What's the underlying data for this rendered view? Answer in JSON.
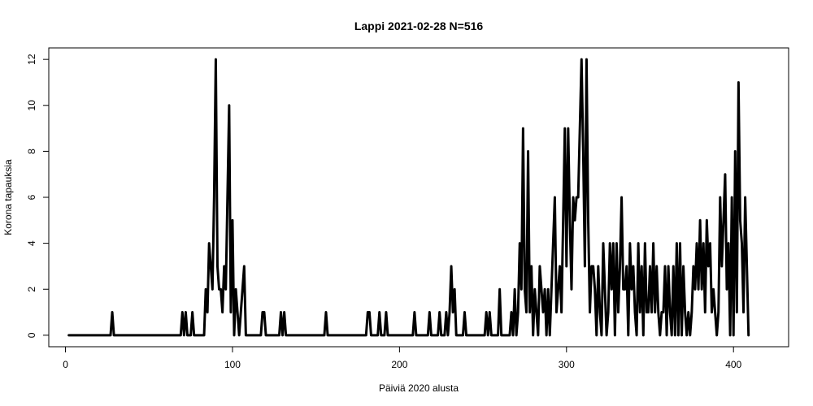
{
  "chart_data": {
    "type": "line",
    "title": "Lappi 2021-02-28 N=516",
    "xlabel": "Päiviä 2020 alusta",
    "ylabel": "Korona tapauksia",
    "xlim": [
      -10,
      433
    ],
    "ylim": [
      -0.5,
      12.5
    ],
    "xticks": [
      0,
      100,
      200,
      300,
      400
    ],
    "yticks": [
      0,
      2,
      4,
      6,
      8,
      10,
      12
    ],
    "grid": false,
    "series": [
      {
        "color": "#000000",
        "points": [
          [
            2,
            0
          ],
          [
            27,
            0
          ],
          [
            28,
            1
          ],
          [
            29,
            0
          ],
          [
            69,
            0
          ],
          [
            70,
            1
          ],
          [
            71,
            0
          ],
          [
            72,
            1
          ],
          [
            73,
            0
          ],
          [
            75,
            0
          ],
          [
            76,
            1
          ],
          [
            77,
            0
          ],
          [
            83,
            0
          ],
          [
            84,
            2
          ],
          [
            85,
            1
          ],
          [
            86,
            4
          ],
          [
            87,
            3
          ],
          [
            88,
            2
          ],
          [
            89,
            6
          ],
          [
            90,
            12
          ],
          [
            91,
            3
          ],
          [
            92,
            2
          ],
          [
            93,
            2
          ],
          [
            94,
            1
          ],
          [
            95,
            3
          ],
          [
            96,
            2
          ],
          [
            97,
            6
          ],
          [
            98,
            10
          ],
          [
            99,
            1
          ],
          [
            100,
            5
          ],
          [
            101,
            0
          ],
          [
            102,
            2
          ],
          [
            103,
            1
          ],
          [
            104,
            0
          ],
          [
            105,
            1
          ],
          [
            106,
            2
          ],
          [
            107,
            3
          ],
          [
            108,
            0
          ],
          [
            117,
            0
          ],
          [
            118,
            1
          ],
          [
            119,
            1
          ],
          [
            120,
            0
          ],
          [
            128,
            0
          ],
          [
            129,
            1
          ],
          [
            130,
            0
          ],
          [
            131,
            1
          ],
          [
            132,
            0
          ],
          [
            155,
            0
          ],
          [
            156,
            1
          ],
          [
            157,
            0
          ],
          [
            180,
            0
          ],
          [
            181,
            1
          ],
          [
            182,
            1
          ],
          [
            183,
            0
          ],
          [
            187,
            0
          ],
          [
            188,
            1
          ],
          [
            189,
            0
          ],
          [
            191,
            0
          ],
          [
            192,
            1
          ],
          [
            193,
            0
          ],
          [
            208,
            0
          ],
          [
            209,
            1
          ],
          [
            210,
            0
          ],
          [
            217,
            0
          ],
          [
            218,
            1
          ],
          [
            219,
            0
          ],
          [
            223,
            0
          ],
          [
            224,
            1
          ],
          [
            225,
            0
          ],
          [
            227,
            0
          ],
          [
            228,
            1
          ],
          [
            229,
            0
          ],
          [
            230,
            1
          ],
          [
            231,
            3
          ],
          [
            232,
            1
          ],
          [
            233,
            2
          ],
          [
            234,
            0
          ],
          [
            238,
            0
          ],
          [
            239,
            1
          ],
          [
            240,
            0
          ],
          [
            251,
            0
          ],
          [
            252,
            1
          ],
          [
            253,
            0
          ],
          [
            254,
            1
          ],
          [
            255,
            0
          ],
          [
            259,
            0
          ],
          [
            260,
            2
          ],
          [
            261,
            0
          ],
          [
            266,
            0
          ],
          [
            267,
            1
          ],
          [
            268,
            0
          ],
          [
            269,
            2
          ],
          [
            270,
            0
          ],
          [
            271,
            1
          ],
          [
            272,
            4
          ],
          [
            273,
            2
          ],
          [
            274,
            9
          ],
          [
            275,
            2
          ],
          [
            276,
            1
          ],
          [
            277,
            8
          ],
          [
            278,
            1
          ],
          [
            279,
            3
          ],
          [
            280,
            0
          ],
          [
            281,
            2
          ],
          [
            282,
            1
          ],
          [
            283,
            0
          ],
          [
            284,
            3
          ],
          [
            285,
            2
          ],
          [
            286,
            1
          ],
          [
            287,
            2
          ],
          [
            288,
            0
          ],
          [
            289,
            2
          ],
          [
            290,
            0
          ],
          [
            291,
            2
          ],
          [
            292,
            4
          ],
          [
            293,
            6
          ],
          [
            294,
            1
          ],
          [
            295,
            2
          ],
          [
            296,
            3
          ],
          [
            297,
            1
          ],
          [
            298,
            5
          ],
          [
            299,
            9
          ],
          [
            300,
            3
          ],
          [
            301,
            9
          ],
          [
            302,
            5
          ],
          [
            303,
            2
          ],
          [
            304,
            6
          ],
          [
            305,
            5
          ],
          [
            306,
            6
          ],
          [
            307,
            6
          ],
          [
            308,
            9
          ],
          [
            309,
            12
          ],
          [
            310,
            8
          ],
          [
            311,
            3
          ],
          [
            312,
            12
          ],
          [
            313,
            5
          ],
          [
            314,
            1
          ],
          [
            315,
            3
          ],
          [
            316,
            3
          ],
          [
            317,
            2
          ],
          [
            318,
            0
          ],
          [
            319,
            3
          ],
          [
            320,
            1
          ],
          [
            321,
            0
          ],
          [
            322,
            4
          ],
          [
            323,
            2
          ],
          [
            324,
            0
          ],
          [
            325,
            1
          ],
          [
            326,
            4
          ],
          [
            327,
            2
          ],
          [
            328,
            4
          ],
          [
            329,
            0
          ],
          [
            330,
            4
          ],
          [
            331,
            1
          ],
          [
            332,
            3
          ],
          [
            333,
            6
          ],
          [
            334,
            2
          ],
          [
            335,
            2
          ],
          [
            336,
            3
          ],
          [
            337,
            0
          ],
          [
            338,
            4
          ],
          [
            339,
            2
          ],
          [
            340,
            3
          ],
          [
            341,
            1
          ],
          [
            342,
            0
          ],
          [
            343,
            4
          ],
          [
            344,
            1
          ],
          [
            345,
            3
          ],
          [
            346,
            0
          ],
          [
            347,
            4
          ],
          [
            348,
            1
          ],
          [
            349,
            1
          ],
          [
            350,
            3
          ],
          [
            351,
            1
          ],
          [
            352,
            4
          ],
          [
            353,
            1
          ],
          [
            354,
            3
          ],
          [
            355,
            1
          ],
          [
            356,
            0
          ],
          [
            357,
            1
          ],
          [
            358,
            1
          ],
          [
            359,
            3
          ],
          [
            360,
            0
          ],
          [
            361,
            3
          ],
          [
            362,
            1
          ],
          [
            363,
            0
          ],
          [
            364,
            3
          ],
          [
            365,
            0
          ],
          [
            366,
            4
          ],
          [
            367,
            0
          ],
          [
            368,
            4
          ],
          [
            369,
            0
          ],
          [
            370,
            3
          ],
          [
            371,
            1
          ],
          [
            372,
            0
          ],
          [
            373,
            1
          ],
          [
            374,
            0
          ],
          [
            375,
            1
          ],
          [
            376,
            3
          ],
          [
            377,
            2
          ],
          [
            378,
            4
          ],
          [
            379,
            2
          ],
          [
            380,
            5
          ],
          [
            381,
            2
          ],
          [
            382,
            4
          ],
          [
            383,
            1
          ],
          [
            384,
            5
          ],
          [
            385,
            3
          ],
          [
            386,
            4
          ],
          [
            387,
            1
          ],
          [
            388,
            2
          ],
          [
            389,
            1
          ],
          [
            390,
            0
          ],
          [
            391,
            1
          ],
          [
            392,
            6
          ],
          [
            393,
            3
          ],
          [
            394,
            5
          ],
          [
            395,
            7
          ],
          [
            396,
            2
          ],
          [
            397,
            4
          ],
          [
            398,
            0
          ],
          [
            399,
            6
          ],
          [
            400,
            0
          ],
          [
            401,
            8
          ],
          [
            402,
            1
          ],
          [
            403,
            11
          ],
          [
            404,
            5
          ],
          [
            405,
            4
          ],
          [
            406,
            1
          ],
          [
            407,
            6
          ],
          [
            408,
            3
          ],
          [
            409,
            0
          ]
        ]
      }
    ]
  }
}
